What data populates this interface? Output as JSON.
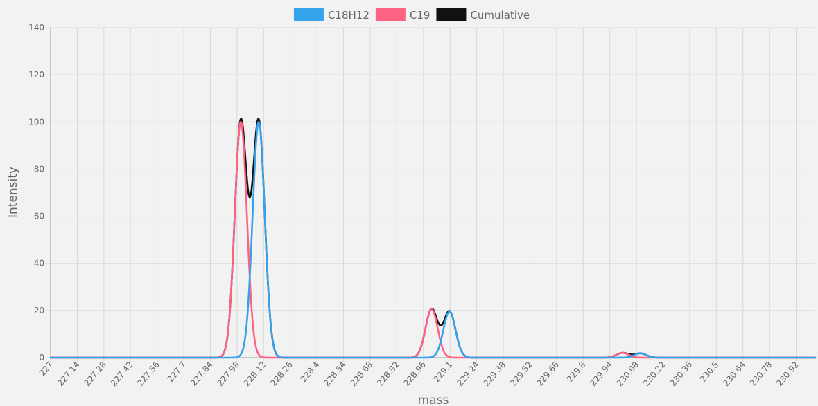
{
  "chart_data": {
    "type": "line",
    "title": "",
    "xlabel": "mass",
    "ylabel": "Intensity",
    "xlim": [
      227,
      231.02
    ],
    "ylim": [
      0,
      140
    ],
    "grid": true,
    "legend_position": "top-center",
    "x_ticks": [
      "227",
      "227.14",
      "227.28",
      "227.42",
      "227.56",
      "227.7",
      "227.84",
      "227.98",
      "228.12",
      "228.26",
      "228.4",
      "228.54",
      "228.68",
      "228.82",
      "228.96",
      "229.1",
      "229.24",
      "229.38",
      "229.52",
      "229.66",
      "229.8",
      "229.94",
      "230.08",
      "230.22",
      "230.36",
      "230.5",
      "230.64",
      "230.78",
      "230.92"
    ],
    "y_ticks": [
      "0",
      "20",
      "40",
      "60",
      "80",
      "100",
      "120",
      "140"
    ],
    "peak_width": 0.032,
    "series": [
      {
        "name": "C18H12",
        "color": "#36a2eb",
        "peaks": [
          {
            "mass": 228.094,
            "intensity": 100
          },
          {
            "mass": 229.097,
            "intensity": 19.5
          },
          {
            "mass": 230.1,
            "intensity": 1.8
          }
        ]
      },
      {
        "name": "C19",
        "color": "#ff6384",
        "peaks": [
          {
            "mass": 228.0,
            "intensity": 100
          },
          {
            "mass": 229.003,
            "intensity": 20.5
          },
          {
            "mass": 230.007,
            "intensity": 2.0
          }
        ]
      },
      {
        "name": "Cumulative",
        "color": "#111111",
        "components": [
          "C18H12",
          "C19"
        ]
      }
    ]
  }
}
